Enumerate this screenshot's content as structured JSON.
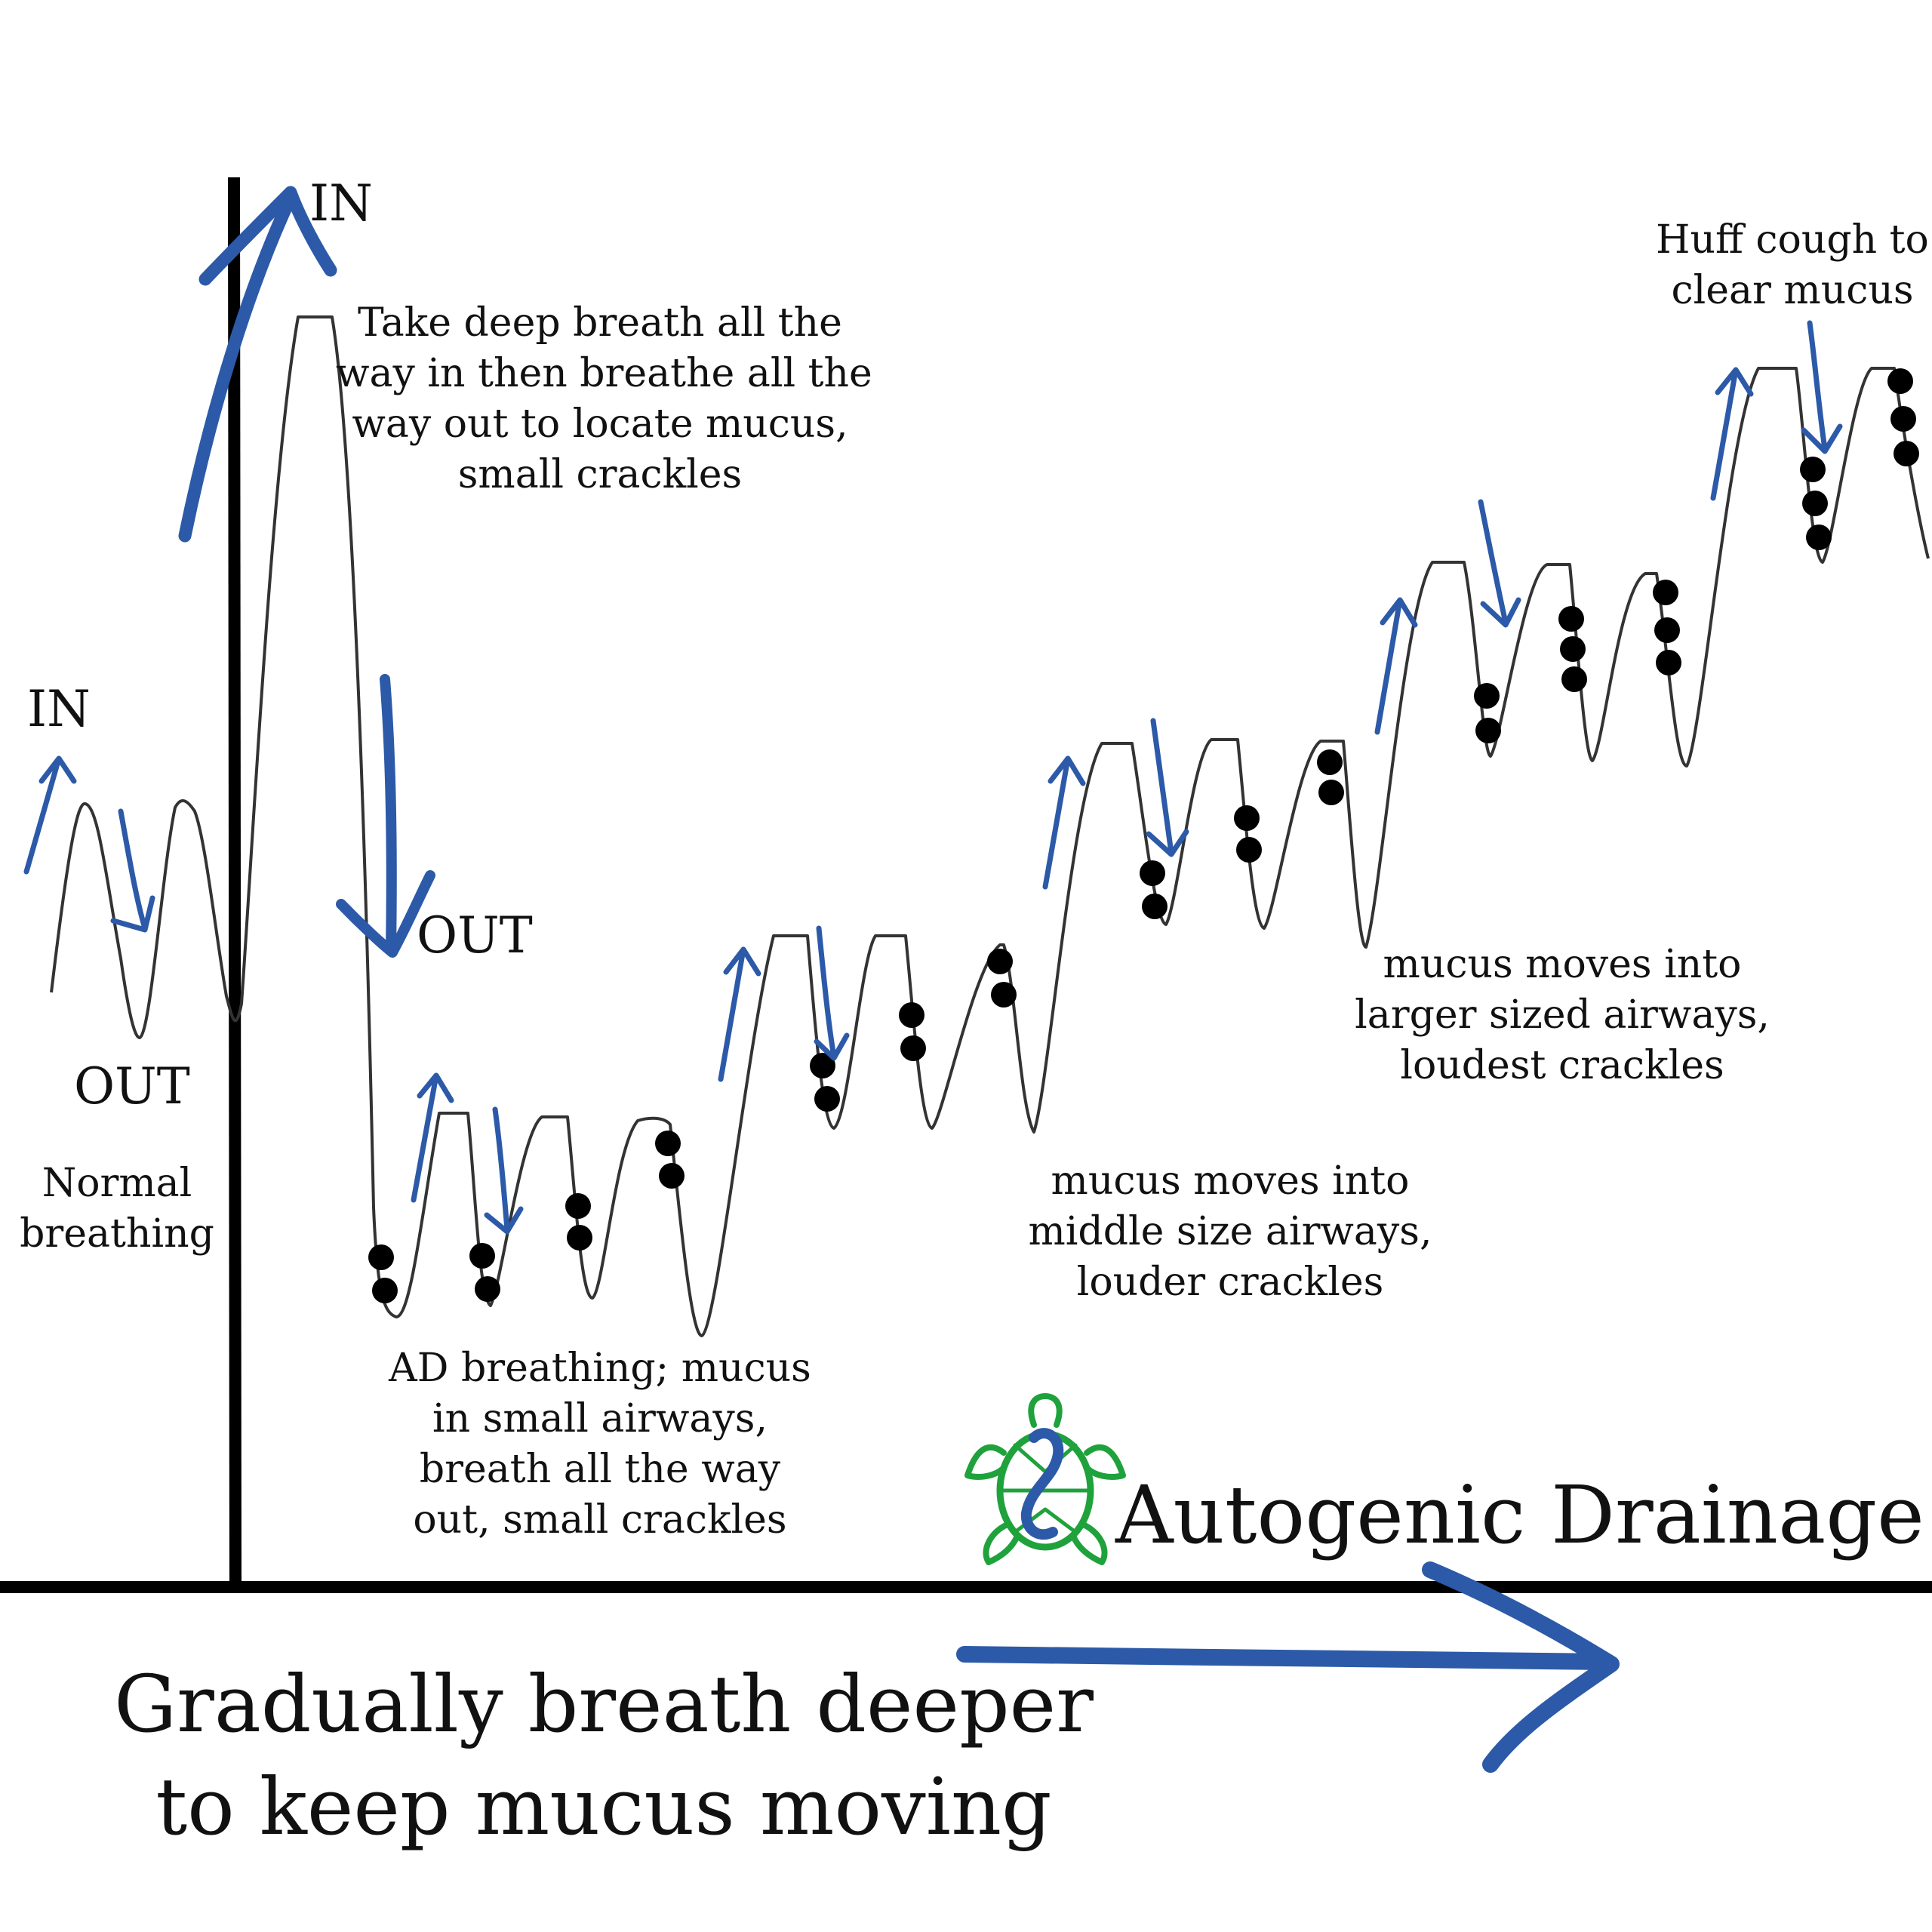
{
  "labels": {
    "in_left": "IN",
    "out_left": "OUT",
    "normal_breathing": "Normal\nbreathing",
    "in_top": "IN",
    "out_mid": "OUT",
    "deep_breath": "Take deep breath all the\nway in then breathe all the\nway out to locate mucus,\nsmall crackles",
    "ad_breathing": "AD breathing; mucus\nin small airways,\nbreath all the way\nout, small crackles",
    "middle_airways": "mucus moves into\nmiddle size airways,\nlouder crackles",
    "larger_airways": "mucus moves into\nlarger sized airways,\nloudest crackles",
    "huff_cough": "Huff cough to\nclear mucus",
    "brand_title": "Autogenic Drainage",
    "footer": "Gradually breath deeper\nto keep mucus moving"
  },
  "colors": {
    "arrow_blue": "#2c5aa8",
    "wave_line": "#333333",
    "axis": "#000000",
    "logo_green": "#1fa23c",
    "logo_blue": "#2c5aa8",
    "text": "#111111",
    "crackle_dot": "#000000"
  },
  "icons": [
    "turtle-logo-icon",
    "arrow-right-icon"
  ]
}
